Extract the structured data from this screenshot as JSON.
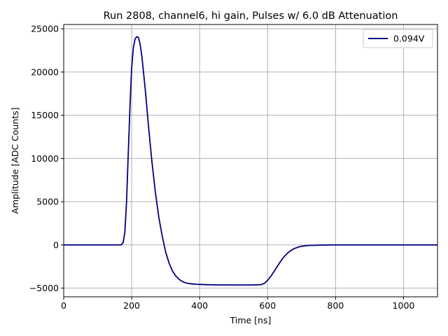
{
  "chart_data": {
    "type": "line",
    "title": "Run 2808, channel6, hi gain, Pulses w/ 6.0 dB Attenuation",
    "xlabel": "Time [ns]",
    "ylabel": "Amplitude [ADC Counts]",
    "xlim": [
      0,
      1100
    ],
    "ylim": [
      -6000,
      25500
    ],
    "xticks": [
      0,
      200,
      400,
      600,
      800,
      1000
    ],
    "yticks": [
      -5000,
      0,
      5000,
      10000,
      15000,
      20000,
      25000
    ],
    "ytick_labels": [
      "−5000",
      "0",
      "5000",
      "10000",
      "15000",
      "20000",
      "25000"
    ],
    "grid": true,
    "legend_position": "top-right",
    "series": [
      {
        "name": "0.094V",
        "color": "#000080",
        "x": [
          0,
          50,
          100,
          150,
          170,
          175,
          180,
          185,
          190,
          195,
          200,
          205,
          210,
          215,
          220,
          225,
          230,
          240,
          250,
          260,
          270,
          280,
          290,
          300,
          310,
          320,
          330,
          340,
          350,
          360,
          370,
          380,
          390,
          400,
          420,
          450,
          500,
          550,
          580,
          590,
          600,
          610,
          620,
          630,
          640,
          650,
          660,
          670,
          680,
          690,
          700,
          720,
          750,
          800,
          850,
          900,
          950,
          1000,
          1050,
          1100
        ],
        "y": [
          0,
          0,
          0,
          0,
          20,
          300,
          1500,
          5000,
          10500,
          16000,
          20500,
          22800,
          23800,
          24100,
          24000,
          23200,
          21800,
          18000,
          13500,
          9500,
          6000,
          3200,
          1000,
          -800,
          -2100,
          -3000,
          -3600,
          -4000,
          -4250,
          -4400,
          -4480,
          -4520,
          -4550,
          -4570,
          -4600,
          -4620,
          -4630,
          -4630,
          -4600,
          -4450,
          -4100,
          -3600,
          -3000,
          -2400,
          -1800,
          -1300,
          -900,
          -600,
          -400,
          -250,
          -150,
          -60,
          -20,
          0,
          0,
          0,
          0,
          0,
          0,
          0
        ]
      }
    ]
  }
}
